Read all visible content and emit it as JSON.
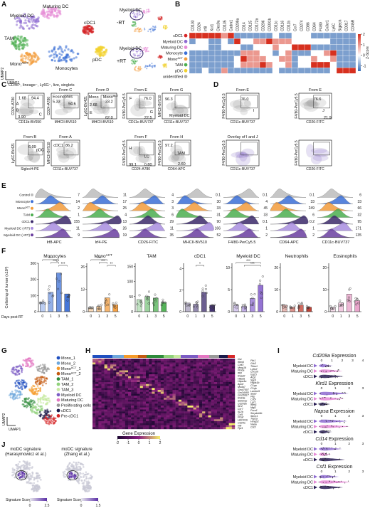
{
  "panel_letters": [
    "A",
    "B",
    "C",
    "D",
    "E",
    "F",
    "G",
    "H",
    "I",
    "J"
  ],
  "A": {
    "umap_labels": [
      "Myeloid DC",
      "Maturing DC",
      "cDC1",
      "TAM",
      {
        "base": "Mono",
        "sup": "ACT"
      },
      "pDC",
      "Monocytes"
    ],
    "umap_colors": [
      "#8e6bd1",
      "#e58ad6",
      "#d62728",
      "#4caf50",
      "#f39c3c",
      "#f2d22e",
      "#3b6fd6"
    ],
    "axis_x": "UMAP1",
    "axis_y": "UMAP2",
    "conditions": [
      "-RT",
      "+RT"
    ],
    "inset_labels": [
      "Myeloid DC",
      "Myeloid DC"
    ]
  },
  "B": {
    "genes": [
      "CD103",
      "CD24",
      "Irf8",
      "Xcr1",
      "Clec9a",
      "CD135",
      "Cadm1",
      "CD209a",
      "CD14",
      "CD115",
      "CD172a",
      "CD206",
      "CD301b",
      "CD11c",
      "CD116",
      "CD11b",
      "Ccr7",
      "CD274",
      "CD86",
      "CD64",
      "F4/80",
      "Cx3cr1",
      "Ly6C",
      "Siglech",
      "CD317",
      "CD45R"
    ],
    "rows": [
      "cDC1",
      "Myeloid DC",
      "Maturing DC",
      "Monocyte",
      {
        "base": "Mono",
        "sup": "ACT"
      },
      "TAM",
      "pDC",
      "unidentified"
    ],
    "row_colors": [
      "#d62728",
      "#8e6bd1",
      "#e58ad6",
      "#3b6fd6",
      "#f39c3c",
      "#4caf50",
      "#f2d22e",
      "#aaaaaa"
    ],
    "z": [
      [
        2,
        2,
        2,
        2,
        2,
        1,
        2,
        -1,
        -1,
        -1,
        -1,
        -1,
        -1,
        0,
        -1,
        -1,
        0,
        0,
        0,
        -1,
        -1,
        -1,
        -1,
        -1,
        -1,
        -1
      ],
      [
        -1,
        0,
        0,
        -1,
        -1,
        0,
        -1,
        2,
        0,
        0,
        1,
        1,
        2,
        1,
        1,
        1,
        0,
        0,
        0,
        0,
        0,
        0,
        -1,
        -1,
        -1,
        -1
      ],
      [
        0,
        0,
        0,
        -1,
        -1,
        0,
        0,
        0,
        -1,
        -1,
        0,
        0,
        0,
        1,
        0,
        0,
        2,
        2,
        2,
        -1,
        -1,
        -1,
        -1,
        -1,
        -1,
        -1
      ],
      [
        -1,
        -1,
        -1,
        -1,
        -1,
        -1,
        -1,
        -1,
        1,
        1,
        1,
        0,
        0,
        -1,
        0,
        1,
        -1,
        -1,
        -1,
        0,
        0,
        1,
        2,
        -1,
        -1,
        -1
      ],
      [
        -1,
        -1,
        -1,
        -1,
        -1,
        -1,
        -1,
        0,
        2,
        1,
        1,
        1,
        0,
        0,
        1,
        1,
        -1,
        0,
        0,
        1,
        0,
        0,
        1,
        -1,
        -1,
        -1
      ],
      [
        -1,
        -1,
        -1,
        -1,
        -1,
        -1,
        -1,
        0,
        1,
        1,
        1,
        2,
        1,
        0,
        0,
        1,
        -1,
        0,
        0,
        2,
        2,
        2,
        0,
        -1,
        -1,
        -1
      ],
      [
        -1,
        -1,
        0,
        -1,
        -1,
        1,
        -1,
        -1,
        -1,
        -1,
        -1,
        -1,
        -1,
        0,
        -1,
        -1,
        -1,
        -1,
        -1,
        -1,
        -1,
        -1,
        0,
        2,
        2,
        2
      ],
      [
        0,
        0,
        0,
        0,
        0,
        0,
        0,
        0,
        0,
        0,
        0,
        0,
        0,
        0,
        0,
        0,
        0,
        0,
        0,
        0,
        0,
        0,
        0,
        0,
        0,
        0
      ]
    ],
    "zlim": [
      -1.5,
      2
    ],
    "zticks": [
      2,
      1,
      0,
      -1
    ],
    "legend_title": "Z-Score"
  },
  "C": {
    "plots": [
      {
        "title": "CD45⁺, lineage⁻, Ly6G⁻, live, singlets",
        "x": "CD11b-BV650",
        "y": "CD24-A780",
        "labels": [
          "1.68",
          "94.4",
          "3.90",
          "A",
          "B",
          "C"
        ]
      },
      {
        "title": "From C",
        "x": "MHCII-BV510",
        "y": "CD24-A780",
        "labels": [
          "Eosinophils",
          "5.33",
          "94.6"
        ]
      },
      {
        "title": "From D",
        "x": "MHCII-BV510",
        "y": "Ly6C-BV421",
        "labels": [
          "Mono",
          {
            "base": "Mono",
            "sup": "ACT"
          },
          "2.68",
          "33.2",
          "E",
          "62.0"
        ]
      },
      {
        "title": "From E",
        "x": "CD11c-BUV737",
        "y": "F4/80-PerCy5.5",
        "labels": [
          "F",
          "76.0",
          "G",
          "22.5"
        ]
      },
      {
        "title": "From G",
        "x": "CD11c-BUV737",
        "y": "MHCII-BV510",
        "labels": [
          "96.3",
          "Myeloid DC"
        ]
      },
      {
        "title": "From B",
        "x": "SiglecH-PE",
        "y": "Ly6C-BV421",
        "labels": [
          "6.09",
          "pDC"
        ]
      },
      {
        "title": "From A",
        "x": "CD11c-BUV737",
        "y": "MHCII-BV510",
        "labels": [
          "cDC1",
          "86.2"
        ]
      },
      {
        "title": "From F",
        "x": "CD24-A780",
        "y": "F4/80-PerCy5.5",
        "labels": [
          "H",
          "LC",
          "99.1",
          "0.80"
        ]
      },
      {
        "title": "From H",
        "x": "CD64-APC",
        "y": "F4/80-PerCy5.5",
        "labels": [
          "TAM",
          "97.2",
          "2.60"
        ]
      }
    ]
  },
  "D": {
    "plots": [
      {
        "title": "From E",
        "x": "CD11c-BUV737",
        "y": "F4/80-PerCy5.5",
        "labels": [
          "76.0",
          "I"
        ]
      },
      {
        "title": "From E",
        "x": "CD26-FITC",
        "y": "F4/80-PerCy5.5",
        "labels": [
          "76.6",
          "J",
          "21.9"
        ]
      },
      {
        "title": "Overlay of I and J",
        "x": "CD11c-BUV737",
        "y": "F4/80-PerCy5.5",
        "labels": []
      },
      {
        "x": "CD26-FITC",
        "y": "F4/80-PerCy5.5",
        "labels": []
      }
    ]
  },
  "E": {
    "rows": [
      "Control",
      "Monocyte",
      {
        "base": "Mono",
        "sup": "ACT"
      },
      "TAM",
      "cDC1",
      "Myeloid DC (-RT)",
      "Myeloid DC (+RT)"
    ],
    "row_colors": [
      "#bdbdbd",
      "#3b6fd6",
      "#f39c3c",
      "#4caf50",
      "#3b2a6b",
      "#a98ee0",
      "#6b3fa0"
    ],
    "markers": [
      "Irf8-APC",
      "Irf4-PE",
      "CD26-FITC",
      "MHCII-BV510",
      "F4/80-PerCy5.5",
      "CD64-APC",
      "CD11c-BUV737"
    ],
    "values": [
      [
        7,
        14,
        2,
        1,
        155,
        11,
        9
      ],
      [
        11,
        17,
        25,
        4,
        13,
        26,
        19
      ],
      [
        4,
        3,
        3,
        6,
        29,
        11,
        35
      ],
      [
        0.1,
        30,
        33,
        31,
        90,
        166,
        52
      ],
      [
        0.1,
        4,
        45,
        33,
        0.1,
        1,
        2
      ],
      [
        0.1,
        33,
        249,
        6,
        0.2,
        1,
        2
      ],
      [
        6,
        33,
        66,
        32,
        95,
        171,
        135
      ]
    ]
  },
  "F": {
    "y_label": "Cells/mg of tumor (x10³)",
    "x_label": "Days post-RT",
    "charts": [
      {
        "title": "Monocytes",
        "color": "#3b6fd6",
        "categories": [
          "0",
          "1",
          "3",
          "5"
        ],
        "values": [
          60,
          120,
          240,
          110
        ],
        "ylim": [
          0,
          300
        ],
        "yticks": [
          0,
          100,
          200,
          300
        ],
        "annotations": [
          "***",
          "***",
          "***"
        ]
      },
      {
        "title": {
          "base": "Mono",
          "sup": "ACT"
        },
        "color": "#f39c3c",
        "categories": [
          "0",
          "1",
          "3",
          "5"
        ],
        "values": [
          2,
          3,
          8,
          4
        ],
        "ylim": [
          0,
          28
        ],
        "yticks": [
          0,
          13,
          26
        ],
        "annotations": [
          "***",
          "***",
          "**"
        ]
      },
      {
        "title": "TAM",
        "color": "#4caf50",
        "categories": [
          "0",
          "1",
          "3",
          "5"
        ],
        "values": [
          40,
          50,
          45,
          30
        ],
        "ylim": [
          0,
          160
        ],
        "yticks": [
          0,
          50,
          100,
          150
        ],
        "annotations": []
      },
      {
        "title": "cDC1",
        "color": "#3b2a6b",
        "categories": [
          "0",
          "1",
          "3",
          "5"
        ],
        "values": [
          0.8,
          0.7,
          1.8,
          0.6
        ],
        "ylim": [
          0,
          4.5
        ],
        "yticks": [
          0,
          2,
          4
        ],
        "annotations": [
          "*"
        ]
      },
      {
        "title": "Myeloid DC",
        "color": "#8e6bd1",
        "categories": [
          "0",
          "1",
          "3",
          "5"
        ],
        "values": [
          1.5,
          1.2,
          3,
          6
        ],
        "ylim": [
          0,
          11
        ],
        "yticks": [
          0,
          5,
          10
        ],
        "annotations": [
          "***",
          "***"
        ]
      },
      {
        "title": "Neutrophils",
        "color": "#c0392b",
        "categories": [
          "0",
          "1",
          "3",
          "5"
        ],
        "values": [
          3,
          2,
          3,
          2
        ],
        "ylim": [
          0,
          22
        ],
        "yticks": [
          0,
          10,
          20
        ],
        "annotations": []
      },
      {
        "title": "Eosinophils",
        "color": "#e8a0c8",
        "categories": [
          "0",
          "1",
          "3",
          "5"
        ],
        "values": [
          2,
          4,
          8,
          5
        ],
        "ylim": [
          0,
          22
        ],
        "yticks": [
          0,
          10,
          20
        ],
        "annotations": []
      }
    ]
  },
  "G": {
    "clusters": [
      "Mono_1",
      "Mono_2",
      {
        "base": "Mono",
        "sup": "ACT",
        "tail": "_1"
      },
      {
        "base": "Mono",
        "sup": "ACT",
        "tail": "_2"
      },
      "TAM_1",
      "TAM_2",
      "TAM_3",
      "Myeloid DC",
      "Maturing DC",
      "Proliferating cells",
      "cDC1",
      "Pre-cDC1"
    ],
    "colors": [
      "#1f4fbf",
      "#6fa8dc",
      "#f59b2a",
      "#c45a10",
      "#2e8b3a",
      "#8fd17a",
      "#c7e9a0",
      "#7b5cc4",
      "#e377c2",
      "#999999",
      "#1a1a4a",
      "#d62728"
    ],
    "axis_x": "UMAP1",
    "axis_y": "UMAP2"
  },
  "H": {
    "genes": [
      "Gsr",
      "Fth1",
      "Ifitm6",
      "Grk3",
      "Chil3",
      "Thbs1",
      "Mmp19",
      "Ly6c2",
      "Pmba",
      "Cxcl10",
      "Ifit3",
      "Isg15",
      "Rsad2",
      "Arg1",
      "Hilpda",
      "Spp1",
      "Hspa1a",
      "Hspa1b",
      "Apoe",
      "C1qa",
      "Ms4a7",
      "C1qb",
      "Gm47507",
      "Lamtor5",
      "Gm34455",
      "Saa3",
      "Gm26917",
      "Pltp",
      "Retnla",
      "Cd5l",
      "Selenop",
      "Lyz1",
      "Cd209a",
      "Ifitm1",
      "Il1r2",
      "Mgl2",
      "Ccr7",
      "Fscn1",
      "Il12b",
      "Serpinb9b",
      "Ccl5",
      "Stmn1",
      "Pclaf",
      "Top2a",
      "Hist1h1b",
      "Hmgb2",
      "Cd24a",
      "Naaa",
      "Irf8",
      "Cst3",
      "Ppt1"
    ],
    "legend_title": "Gene Expression",
    "legend_lim": [
      -2,
      2
    ],
    "legend_ticks": [
      -2,
      -1,
      0,
      1,
      2
    ]
  },
  "I": {
    "blocks": [
      {
        "gene": "Cd209a",
        "label": "Expression",
        "ticks": [
          0,
          1,
          2,
          3,
          4
        ],
        "groups": [
          "Myeloid DC",
          "Maturing DC",
          "cDC1"
        ]
      },
      {
        "gene": "Klrd1",
        "label": "Expression",
        "ticks": [
          0,
          1,
          2,
          3
        ],
        "groups": [
          "Myeloid DC",
          "Maturing DC",
          "cDC1"
        ]
      },
      {
        "gene": "Napsa",
        "label": "Expression",
        "ticks": [
          0,
          1,
          2,
          3
        ],
        "groups": [
          "Myeloid DC",
          "Maturing DC",
          "cDC1"
        ]
      },
      {
        "gene": "Cd14",
        "label": "Expression",
        "ticks": [
          0,
          1,
          2,
          3
        ],
        "groups": [
          "Myeloid DC",
          "Maturing DC",
          "cDC1"
        ]
      },
      {
        "gene": "Csf1",
        "label": "Expression",
        "ticks": [
          0,
          1,
          2,
          3
        ],
        "groups": [
          "Myeloid DC",
          "Maturing DC",
          "cDC1"
        ]
      }
    ]
  },
  "J": {
    "plots": [
      {
        "title": "moDC signature",
        "subtitle": "(Harasymowicz et al.)",
        "legend_title": "Signature Score",
        "lim": [
          0,
          2.5
        ],
        "ticks": [
          0,
          2.5
        ]
      },
      {
        "title": "moDC signature",
        "subtitle": "(Zhang et al.)",
        "legend_title": "Signature Score",
        "lim": [
          0,
          1.5
        ],
        "ticks": [
          0,
          1.5
        ]
      }
    ]
  }
}
